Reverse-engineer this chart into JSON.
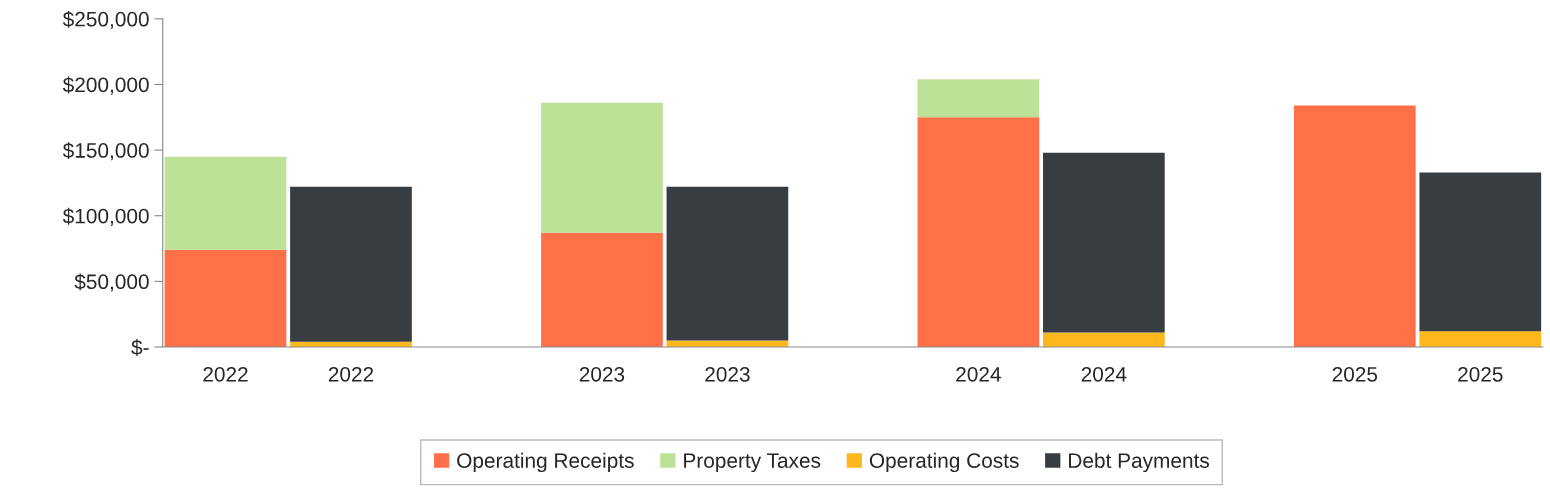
{
  "chart_data": {
    "type": "bar",
    "stacked": true,
    "categories": [
      "2022",
      "2022",
      null,
      "2023",
      "2023",
      null,
      "2024",
      "2024",
      null,
      "2025",
      "2025"
    ],
    "series": [
      {
        "name": "Operating Receipts",
        "color": "#ff7049",
        "values": [
          74000,
          null,
          null,
          87000,
          null,
          null,
          175000,
          null,
          null,
          184000,
          null
        ]
      },
      {
        "name": "Property Taxes",
        "color": "#bde197",
        "values": [
          71000,
          null,
          null,
          99000,
          null,
          null,
          29000,
          null,
          null,
          null,
          null
        ]
      },
      {
        "name": "Operating Costs",
        "color": "#ffb81c",
        "values": [
          null,
          4000,
          null,
          null,
          5000,
          null,
          null,
          11000,
          null,
          null,
          12000
        ]
      },
      {
        "name": "Debt Payments",
        "color": "#383d42",
        "values": [
          null,
          118000,
          null,
          null,
          117000,
          null,
          null,
          137000,
          null,
          null,
          121000
        ]
      }
    ],
    "ylim": [
      0,
      250000
    ],
    "yticks": [
      {
        "value": 0,
        "label": "$-"
      },
      {
        "value": 50000,
        "label": "$50,000"
      },
      {
        "value": 100000,
        "label": "$100,000"
      },
      {
        "value": 150000,
        "label": "$150,000"
      },
      {
        "value": 200000,
        "label": "$200,000"
      },
      {
        "value": 250000,
        "label": "$250,000"
      }
    ],
    "grid": false,
    "legend": "bottom"
  }
}
